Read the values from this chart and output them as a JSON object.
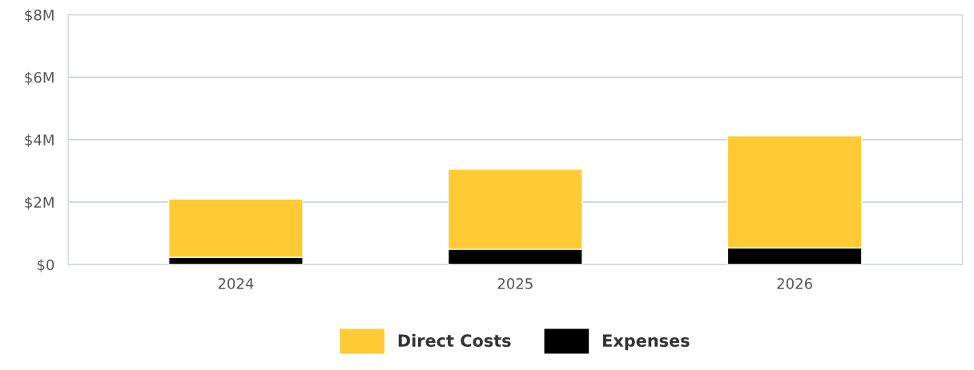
{
  "chart_data": {
    "type": "bar",
    "stacked": true,
    "categories": [
      "2024",
      "2025",
      "2026"
    ],
    "series": [
      {
        "name": "Expenses",
        "color": "#000000",
        "values": [
          0.23,
          0.49,
          0.54
        ]
      },
      {
        "name": "Direct Costs",
        "color": "#ffca33",
        "values": [
          1.87,
          2.56,
          3.59
        ]
      }
    ],
    "ylim": [
      0,
      8
    ],
    "yticks": [
      {
        "value": 0,
        "label": "$0"
      },
      {
        "value": 2,
        "label": "$2M"
      },
      {
        "value": 4,
        "label": "$4M"
      },
      {
        "value": 6,
        "label": "$6M"
      },
      {
        "value": 8,
        "label": "$8M"
      }
    ],
    "grid": "y",
    "legend": "bottom"
  }
}
